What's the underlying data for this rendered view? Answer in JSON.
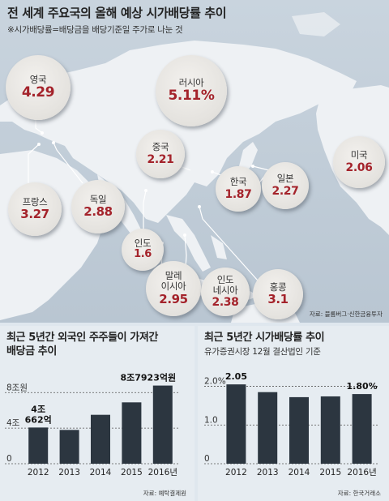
{
  "title": "전 세계 주요국의 올해 예상 시가배당률 추이",
  "subtitle": "※시가배당률=배당금을 배당기준일 주가로 나눈 것",
  "map_source": "자료: 블룸버그·신한금융투자",
  "countries": [
    {
      "name": "영국",
      "value": "4.29"
    },
    {
      "name": "러시아",
      "value": "5.11%"
    },
    {
      "name": "중국",
      "value": "2.21"
    },
    {
      "name": "미국",
      "value": "2.06"
    },
    {
      "name": "한국",
      "value": "1.87"
    },
    {
      "name": "일본",
      "value": "2.27"
    },
    {
      "name": "프랑스",
      "value": "3.27"
    },
    {
      "name": "독일",
      "value": "2.88"
    },
    {
      "name": "인도",
      "value": "1.6"
    },
    {
      "name": "말레\n이시아",
      "value": "2.95"
    },
    {
      "name": "인도\n네시아",
      "value": "2.38"
    },
    {
      "name": "홍콩",
      "value": "3.1"
    }
  ],
  "colors": {
    "bar": "#2c3640",
    "value_red": "#a4232b",
    "map_land": "#eef1f4",
    "map_sea": "#c5d0db"
  },
  "chart_data": [
    {
      "type": "bar",
      "title": "최근 5년간 외국인 주주들이 가져간\n배당금 추이",
      "categories": [
        "2012",
        "2013",
        "2014",
        "2015",
        "2016년"
      ],
      "values": [
        4.07,
        3.8,
        5.5,
        6.9,
        8.79
      ],
      "ylim": [
        0,
        9.3
      ],
      "y_ticks": [
        "0",
        "4조",
        "8조원"
      ],
      "y_tick_values": [
        0,
        4,
        8
      ],
      "data_labels": [
        {
          "index": 0,
          "text": "4조\n662억"
        },
        {
          "index": 4,
          "text": "8조7923억원"
        }
      ],
      "grid": "dotted",
      "source": "자료: 예탁결제원"
    },
    {
      "type": "bar",
      "title": "최근 5년간 시가배당률 추이",
      "subtitle": "유가증권시장 12월 결산법인 기준",
      "categories": [
        "2012",
        "2013",
        "2014",
        "2015",
        "2016년"
      ],
      "values": [
        2.05,
        1.85,
        1.72,
        1.74,
        1.8
      ],
      "ylim": [
        0,
        2.2
      ],
      "y_ticks": [
        "0",
        "1.0",
        "2.0%"
      ],
      "y_tick_values": [
        0,
        1,
        2
      ],
      "data_labels": [
        {
          "index": 0,
          "text": "2.05"
        },
        {
          "index": 4,
          "text": "1.80%"
        }
      ],
      "grid": "dotted",
      "source": "자료: 한국거래소"
    }
  ]
}
